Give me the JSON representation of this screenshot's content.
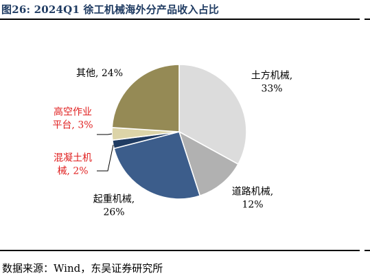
{
  "title": "图26:  2024Q1 徐工机械海外分产品收入占比",
  "source": "数据来源：Wind，东吴证券研究所",
  "chart_data": {
    "type": "pie",
    "unit": "%",
    "slices": [
      {
        "name": "土方机械",
        "value": 33,
        "label_lines": [
          "土方机械,",
          "33%"
        ],
        "color": "#dcdcdc",
        "label_color": "#000000"
      },
      {
        "name": "道路机械",
        "value": 12,
        "label_lines": [
          "道路机械,",
          "12%"
        ],
        "color": "#b1b1b1",
        "label_color": "#000000"
      },
      {
        "name": "起重机械",
        "value": 26,
        "label_lines": [
          "起重机械,",
          "26%"
        ],
        "color": "#3c5d8b",
        "label_color": "#000000"
      },
      {
        "name": "混凝土机械",
        "value": 2,
        "label_lines": [
          "混凝土机",
          "械, 2%"
        ],
        "color": "#1f3b62",
        "label_color": "#e02020"
      },
      {
        "name": "高空作业平台",
        "value": 3,
        "label_lines": [
          "高空作业",
          "平台, 3%"
        ],
        "color": "#dcd4a8",
        "label_color": "#e02020"
      },
      {
        "name": "其他",
        "value": 24,
        "label_lines": [
          "其他, 24%"
        ],
        "color": "#958a55",
        "label_color": "#000000"
      }
    ]
  }
}
